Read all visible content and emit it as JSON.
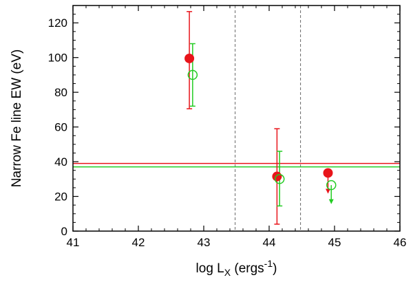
{
  "chart_data": {
    "type": "scatter",
    "xlabel": "log L",
    "xlabel_sub": "X",
    "xlabel_unit_pre": " (ergs",
    "xlabel_unit_sup": "-1",
    "xlabel_unit_post": ")",
    "ylabel": "Narrow Fe line EW (eV)",
    "xlim": [
      41,
      46
    ],
    "ylim": [
      0,
      130
    ],
    "xticks": [
      41,
      42,
      43,
      44,
      45,
      46
    ],
    "yticks": [
      0,
      20,
      40,
      60,
      80,
      100,
      120
    ],
    "grid": false,
    "vlines": [
      43.48,
      44.48
    ],
    "series": [
      {
        "marker": "filled-circle",
        "color": "#e8141a",
        "hline": 39,
        "points": [
          {
            "x": 42.78,
            "y": 99.5,
            "ylow": 70.5,
            "yhigh": 126.5,
            "upper_limit": false
          },
          {
            "x": 44.12,
            "y": 31.5,
            "ylow": 4,
            "yhigh": 59,
            "upper_limit": false
          },
          {
            "x": 44.9,
            "y": 33.5,
            "ylow": null,
            "yhigh": null,
            "upper_limit": true,
            "arrow_to": 22
          }
        ]
      },
      {
        "marker": "open-circle",
        "color": "#22cc22",
        "hline": 37,
        "points": [
          {
            "x": 42.83,
            "y": 90,
            "ylow": 72,
            "yhigh": 108,
            "upper_limit": false
          },
          {
            "x": 44.16,
            "y": 30,
            "ylow": 14.5,
            "yhigh": 46,
            "upper_limit": false
          },
          {
            "x": 44.95,
            "y": 26.5,
            "ylow": null,
            "yhigh": null,
            "upper_limit": true,
            "arrow_to": 16
          }
        ]
      }
    ]
  }
}
